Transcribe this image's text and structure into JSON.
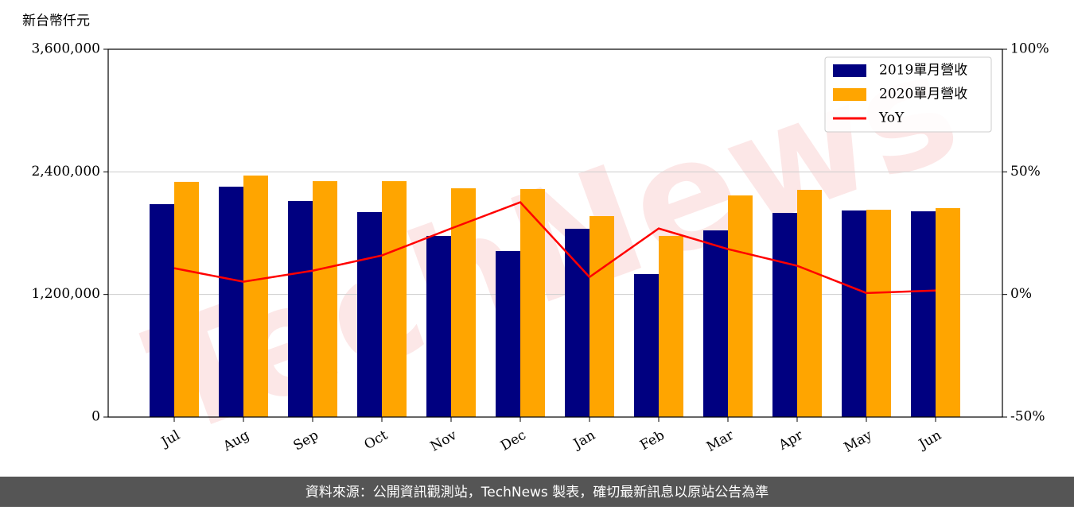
{
  "chart_data": {
    "type": "bar_line",
    "y_label": "新台幣仟元",
    "watermark": "TechNews",
    "categories": [
      "Jul",
      "Aug",
      "Sep",
      "Oct",
      "Nov",
      "Dec",
      "Jan",
      "Feb",
      "Mar",
      "Apr",
      "May",
      "Jun"
    ],
    "series": [
      {
        "name": "2019單月營收",
        "color": "#000080",
        "type": "bar",
        "values": [
          2084000,
          2255000,
          2115000,
          2006000,
          1773000,
          1625000,
          1843000,
          1400000,
          1827000,
          1998000,
          2022000,
          2014000
        ]
      },
      {
        "name": "2020單月營收",
        "color": "#ffa500",
        "type": "bar",
        "values": [
          2302000,
          2364000,
          2309000,
          2309000,
          2239000,
          2232000,
          1967000,
          1773000,
          2169000,
          2224000,
          2029000,
          2045000
        ]
      },
      {
        "name": "YoY",
        "color": "#ff0000",
        "type": "line",
        "axis": "y2",
        "values": [
          10.7,
          5.2,
          9.7,
          15.9,
          26.9,
          37.6,
          7.1,
          26.9,
          18.5,
          11.7,
          0.6,
          1.6
        ]
      }
    ],
    "ylim": [
      0,
      3600000
    ],
    "yticks": [
      0,
      {
        "value": 1200000,
        "label": "1,200,000"
      },
      {
        "value": 2400000,
        "label": "2,400,000"
      },
      {
        "value": 3600000,
        "label": "3,600,000"
      }
    ],
    "y2lim": [
      -50,
      100
    ],
    "y2ticks": [
      {
        "value": -50,
        "label": "-50%"
      },
      {
        "value": 0,
        "label": "0%"
      },
      {
        "value": 50,
        "label": "50%"
      },
      {
        "value": 100,
        "label": "100%"
      }
    ],
    "grid": true,
    "legend": "upper right",
    "footer": "資料來源：公開資訊觀測站，TechNews 製表，確切最新訊息以原站公告為準"
  }
}
